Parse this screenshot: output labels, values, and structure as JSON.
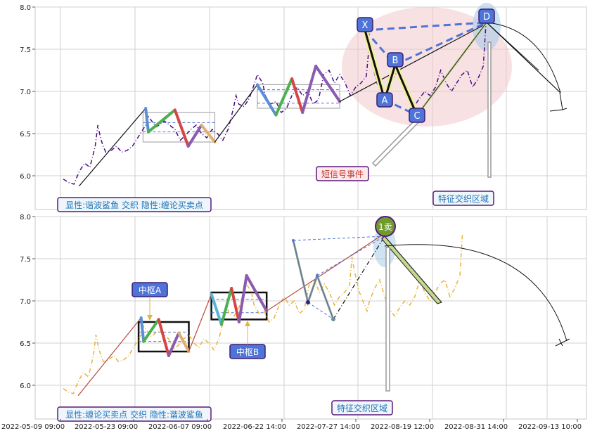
{
  "chart_data": [
    {
      "type": "line",
      "ylim": [
        5.6,
        8.0
      ],
      "yticks": [
        6.0,
        6.5,
        7.0,
        7.5,
        8.0
      ],
      "grid": true,
      "price_series": {
        "style": "dash-dot",
        "color": "#4b0c82",
        "points": [
          [
            0,
            5.96
          ],
          [
            2,
            5.92
          ],
          [
            4,
            5.9
          ],
          [
            6,
            6.05
          ],
          [
            8,
            6.15
          ],
          [
            10,
            6.1
          ],
          [
            12,
            6.35
          ],
          [
            13,
            6.6
          ],
          [
            14,
            6.45
          ],
          [
            15,
            6.35
          ],
          [
            16,
            6.28
          ],
          [
            18,
            6.3
          ],
          [
            20,
            6.35
          ],
          [
            22,
            6.28
          ],
          [
            24,
            6.3
          ],
          [
            26,
            6.35
          ],
          [
            28,
            6.45
          ],
          [
            30,
            6.55
          ],
          [
            31,
            6.6
          ],
          [
            32,
            6.7
          ],
          [
            34,
            6.62
          ],
          [
            35,
            6.58
          ],
          [
            36,
            6.6
          ],
          [
            38,
            6.65
          ],
          [
            40,
            6.6
          ],
          [
            42,
            6.55
          ],
          [
            44,
            6.42
          ],
          [
            46,
            6.48
          ],
          [
            48,
            6.55
          ],
          [
            50,
            6.6
          ],
          [
            52,
            6.5
          ],
          [
            54,
            6.45
          ],
          [
            56,
            6.55
          ],
          [
            58,
            6.5
          ],
          [
            60,
            6.42
          ],
          [
            62,
            6.55
          ],
          [
            64,
            6.8
          ],
          [
            65,
            6.95
          ],
          [
            66,
            6.85
          ],
          [
            68,
            6.82
          ],
          [
            70,
            6.92
          ],
          [
            72,
            7.1
          ],
          [
            73,
            7.2
          ],
          [
            74,
            7.15
          ],
          [
            75,
            7.1
          ],
          [
            76,
            6.95
          ],
          [
            78,
            6.85
          ],
          [
            80,
            6.88
          ],
          [
            82,
            6.75
          ],
          [
            84,
            6.8
          ],
          [
            86,
            6.95
          ],
          [
            88,
            7.05
          ],
          [
            90,
            6.95
          ],
          [
            92,
            7.0
          ],
          [
            94,
            6.85
          ],
          [
            96,
            6.9
          ],
          [
            98,
            7.2
          ],
          [
            100,
            7.25
          ],
          [
            102,
            7.1
          ],
          [
            104,
            7.2
          ],
          [
            106,
            7.1
          ],
          [
            108,
            6.95
          ],
          [
            110,
            7.05
          ],
          [
            112,
            7.1
          ],
          [
            114,
            7.18
          ],
          [
            115,
            7.52
          ],
          [
            116,
            7.35
          ],
          [
            118,
            7.1
          ],
          [
            120,
            6.95
          ],
          [
            121,
            6.88
          ],
          [
            122,
            7.0
          ],
          [
            124,
            7.15
          ],
          [
            126,
            7.25
          ],
          [
            128,
            7.05
          ],
          [
            130,
            6.9
          ],
          [
            132,
            6.82
          ],
          [
            134,
            6.92
          ],
          [
            136,
            7.0
          ],
          [
            138,
            6.95
          ],
          [
            140,
            7.05
          ],
          [
            142,
            7.25
          ],
          [
            144,
            7.1
          ],
          [
            146,
            7.0
          ],
          [
            148,
            7.1
          ],
          [
            150,
            7.2
          ],
          [
            152,
            7.25
          ],
          [
            154,
            7.05
          ],
          [
            156,
            7.15
          ],
          [
            158,
            7.3
          ],
          [
            159,
            7.8
          ]
        ]
      },
      "zigzag_segments": [
        {
          "from": [
            6,
            5.88
          ],
          "to": [
            31,
            6.8
          ],
          "color": "#111111"
        },
        {
          "from": [
            31,
            6.8
          ],
          "to": [
            32,
            6.52
          ],
          "color": "#5b8fd6"
        },
        {
          "from": [
            32,
            6.52
          ],
          "to": [
            42,
            6.78
          ],
          "color": "#4caf50"
        },
        {
          "from": [
            42,
            6.78
          ],
          "to": [
            47,
            6.35
          ],
          "color": "#d64545"
        },
        {
          "from": [
            47,
            6.35
          ],
          "to": [
            52,
            6.6
          ],
          "color": "#8a5bb0"
        },
        {
          "from": [
            52,
            6.6
          ],
          "to": [
            57,
            6.4
          ],
          "color": "#e0b070"
        },
        {
          "from": [
            57,
            6.4
          ],
          "to": [
            73,
            7.08
          ],
          "color": "#111111"
        },
        {
          "from": [
            73,
            7.08
          ],
          "to": [
            80,
            6.72
          ],
          "color": "#5b8fd6"
        },
        {
          "from": [
            80,
            6.72
          ],
          "to": [
            86,
            7.15
          ],
          "color": "#4caf50"
        },
        {
          "from": [
            86,
            7.15
          ],
          "to": [
            90,
            6.75
          ],
          "color": "#d64545"
        },
        {
          "from": [
            90,
            6.75
          ],
          "to": [
            95,
            7.3
          ],
          "color": "#8a5bb0"
        },
        {
          "from": [
            95,
            7.3
          ],
          "to": [
            104,
            6.88
          ],
          "color": "#8a5bb0"
        },
        {
          "from": [
            104,
            6.88
          ],
          "to": [
            159,
            7.8
          ],
          "color": "#111111"
        }
      ],
      "pivot_boxes": [
        {
          "x0": 30,
          "x1": 57,
          "y0": 6.4,
          "y1": 6.75,
          "mid": 6.52,
          "mid2": 6.63
        },
        {
          "x0": 73,
          "x1": 104,
          "y0": 6.8,
          "y1": 7.08,
          "mid": 6.86,
          "mid2": 7.02
        }
      ],
      "harmonic_points": [
        {
          "label": "X",
          "x": 115,
          "y": 7.72
        },
        {
          "label": "A",
          "x": 121,
          "y": 6.93
        },
        {
          "label": "B",
          "x": 126,
          "y": 7.28
        },
        {
          "label": "C",
          "x": 132,
          "y": 6.78
        },
        {
          "label": "D",
          "x": 159,
          "y": 7.8
        }
      ],
      "projection_target": {
        "x": 175,
        "y": 6.98
      },
      "annotations": [
        "短信号事件",
        "特征交织区域"
      ],
      "caption": "显性:谐波鲨鱼 交织 隐性:缠论买卖点"
    },
    {
      "type": "line",
      "ylim": [
        5.6,
        8.0
      ],
      "yticks": [
        6.0,
        6.5,
        7.0,
        7.5,
        8.0
      ],
      "xtick_labels": [
        "2022-05-09 09:00",
        "2022-05-23 09:00",
        "2022-06-07 09:00",
        "2022-06-22 14:00",
        "2022-07-27 14:00",
        "2022-08-19 12:00",
        "2022-08-31 14:00",
        "2022-09-13 10:00"
      ],
      "grid": true,
      "price_series": {
        "style": "dash-dot",
        "color": "#e6b43c",
        "points": [
          [
            0,
            5.96
          ],
          [
            2,
            5.92
          ],
          [
            4,
            5.9
          ],
          [
            6,
            6.05
          ],
          [
            8,
            6.15
          ],
          [
            10,
            6.1
          ],
          [
            12,
            6.35
          ],
          [
            13,
            6.6
          ],
          [
            14,
            6.45
          ],
          [
            15,
            6.35
          ],
          [
            16,
            6.28
          ],
          [
            18,
            6.3
          ],
          [
            20,
            6.35
          ],
          [
            22,
            6.28
          ],
          [
            24,
            6.3
          ],
          [
            26,
            6.35
          ],
          [
            28,
            6.45
          ],
          [
            30,
            6.55
          ],
          [
            31,
            6.6
          ],
          [
            32,
            6.7
          ],
          [
            34,
            6.62
          ],
          [
            35,
            6.58
          ],
          [
            36,
            6.6
          ],
          [
            38,
            6.65
          ],
          [
            40,
            6.6
          ],
          [
            42,
            6.55
          ],
          [
            44,
            6.42
          ],
          [
            46,
            6.48
          ],
          [
            48,
            6.55
          ],
          [
            50,
            6.6
          ],
          [
            52,
            6.5
          ],
          [
            54,
            6.45
          ],
          [
            56,
            6.55
          ],
          [
            58,
            6.5
          ],
          [
            60,
            6.42
          ],
          [
            62,
            6.55
          ],
          [
            64,
            6.8
          ],
          [
            65,
            6.95
          ],
          [
            66,
            6.85
          ],
          [
            68,
            6.82
          ],
          [
            70,
            6.92
          ],
          [
            72,
            7.1
          ],
          [
            73,
            7.2
          ],
          [
            74,
            7.15
          ],
          [
            75,
            7.1
          ],
          [
            76,
            6.95
          ],
          [
            78,
            6.85
          ],
          [
            80,
            6.88
          ],
          [
            82,
            6.75
          ],
          [
            84,
            6.8
          ],
          [
            86,
            6.95
          ],
          [
            88,
            7.05
          ],
          [
            90,
            6.95
          ],
          [
            92,
            7.0
          ],
          [
            94,
            6.85
          ],
          [
            96,
            6.9
          ],
          [
            98,
            7.2
          ],
          [
            100,
            7.25
          ],
          [
            102,
            7.1
          ],
          [
            104,
            7.2
          ],
          [
            106,
            7.1
          ],
          [
            108,
            6.95
          ],
          [
            110,
            7.05
          ],
          [
            112,
            7.1
          ],
          [
            114,
            7.18
          ],
          [
            115,
            7.52
          ],
          [
            116,
            7.35
          ],
          [
            118,
            7.1
          ],
          [
            120,
            6.95
          ],
          [
            121,
            6.88
          ],
          [
            122,
            7.0
          ],
          [
            124,
            7.15
          ],
          [
            126,
            7.25
          ],
          [
            128,
            7.05
          ],
          [
            130,
            6.9
          ],
          [
            132,
            6.82
          ],
          [
            134,
            6.92
          ],
          [
            136,
            7.0
          ],
          [
            138,
            6.95
          ],
          [
            140,
            7.05
          ],
          [
            142,
            7.25
          ],
          [
            144,
            7.1
          ],
          [
            146,
            7.0
          ],
          [
            148,
            7.1
          ],
          [
            150,
            7.2
          ],
          [
            152,
            7.25
          ],
          [
            154,
            7.05
          ],
          [
            156,
            7.15
          ],
          [
            158,
            7.3
          ],
          [
            159,
            7.8
          ]
        ]
      },
      "zigzag_segments": [
        {
          "from": [
            6,
            5.88
          ],
          "to": [
            31,
            6.8
          ],
          "color": "#b84a3c"
        },
        {
          "from": [
            31,
            6.8
          ],
          "to": [
            32,
            6.52
          ],
          "color": "#5b8fd6"
        },
        {
          "from": [
            32,
            6.52
          ],
          "to": [
            38,
            6.78
          ],
          "color": "#4caf50"
        },
        {
          "from": [
            38,
            6.78
          ],
          "to": [
            42,
            6.35
          ],
          "color": "#d64545"
        },
        {
          "from": [
            42,
            6.35
          ],
          "to": [
            46,
            6.62
          ],
          "color": "#8a5bb0"
        },
        {
          "from": [
            46,
            6.62
          ],
          "to": [
            50,
            6.4
          ],
          "color": "#e0b070"
        },
        {
          "from": [
            50,
            6.4
          ],
          "to": [
            59,
            7.08
          ],
          "color": "#b84a3c"
        },
        {
          "from": [
            59,
            7.08
          ],
          "to": [
            63,
            6.72
          ],
          "color": "#5ab4d6"
        },
        {
          "from": [
            63,
            6.72
          ],
          "to": [
            67,
            7.15
          ],
          "color": "#4caf50"
        },
        {
          "from": [
            67,
            7.15
          ],
          "to": [
            70,
            6.75
          ],
          "color": "#d64545"
        },
        {
          "from": [
            70,
            6.75
          ],
          "to": [
            73,
            7.3
          ],
          "color": "#8a5bb0"
        },
        {
          "from": [
            73,
            7.3
          ],
          "to": [
            81,
            6.88
          ],
          "color": "#8a5bb0"
        },
        {
          "from": [
            81,
            6.88
          ],
          "to": [
            128,
            7.8
          ],
          "color": "#b84a3c"
        }
      ],
      "pivot_boxes": [
        {
          "label": "中枢A",
          "x0": 30,
          "x1": 50,
          "y0": 6.4,
          "y1": 6.75,
          "mid": 6.52,
          "mid2": 6.63
        },
        {
          "label": "中枢B",
          "x0": 59,
          "x1": 81,
          "y0": 6.78,
          "y1": 7.1,
          "mid": 6.86,
          "mid2": 7.02
        }
      ],
      "signal": {
        "label": "1卖",
        "x": 128,
        "y": 7.8
      },
      "projection_target": {
        "x": 145,
        "y": 6.98
      },
      "annotations": [
        "特征交织区域"
      ],
      "caption": "显性:缠论买卖点 交织 隐性:谐波鲨鱼"
    }
  ]
}
